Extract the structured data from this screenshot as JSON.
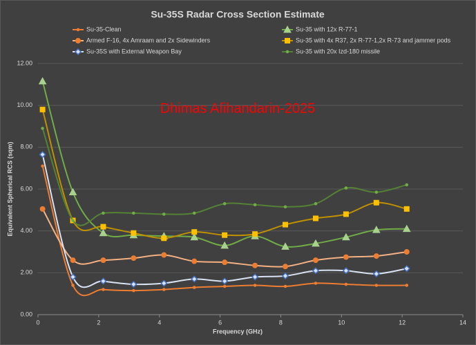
{
  "chart_data": {
    "type": "line",
    "title": "Su-35S Radar Cross Section Estimate",
    "x_label": "Frequency (GHz)",
    "y_label": "Equivalent Spherical RCS (sqm)",
    "annotation": "Dhimas Afihandarin-2025",
    "x": [
      0.15,
      1.15,
      2.15,
      3.15,
      4.15,
      5.15,
      6.15,
      7.15,
      8.15,
      9.15,
      10.15,
      11.15,
      12.15
    ],
    "xlim": [
      0,
      14
    ],
    "xticks": [
      0,
      2,
      4,
      6,
      8,
      10,
      12,
      14
    ],
    "ylim": [
      0,
      12
    ],
    "yticks": [
      {
        "value": 0,
        "label": "0.00"
      },
      {
        "value": 2,
        "label": "2.00"
      },
      {
        "value": 4,
        "label": "4.00"
      },
      {
        "value": 6,
        "label": "6.00"
      },
      {
        "value": 8,
        "label": "8.00"
      },
      {
        "value": 10,
        "label": "10.00"
      },
      {
        "value": 12,
        "label": "12.00"
      }
    ],
    "grid": true,
    "series": [
      {
        "name": "Su-35-Clean",
        "color": "#ed7d31",
        "marker": "dot",
        "values": [
          7.1,
          1.4,
          1.2,
          1.15,
          1.2,
          1.3,
          1.35,
          1.4,
          1.35,
          1.5,
          1.45,
          1.4,
          1.4
        ]
      },
      {
        "name": "Armed F-16, 4x Amraam and 2x Sidewinders",
        "color": "#f4b183",
        "marker": "circle",
        "marker_color": "#ed7d31",
        "values": [
          5.05,
          2.6,
          2.6,
          2.7,
          2.85,
          2.55,
          2.5,
          2.35,
          2.3,
          2.6,
          2.75,
          2.8,
          3.0
        ]
      },
      {
        "name": "Su-35S with External Weapon Bay",
        "color": "#dae3f3",
        "marker": "diamond",
        "marker_color": "#4472c4",
        "values": [
          7.65,
          1.8,
          1.6,
          1.45,
          1.5,
          1.7,
          1.6,
          1.8,
          1.85,
          2.1,
          2.1,
          1.95,
          2.2
        ]
      },
      {
        "name": "Su-35 with 12x R-77-1",
        "color": "#70ad47",
        "marker": "triangle",
        "marker_color": "#a9d18e",
        "values": [
          11.15,
          5.85,
          3.9,
          3.8,
          3.75,
          3.7,
          3.3,
          3.75,
          3.25,
          3.4,
          3.7,
          4.05,
          4.1
        ]
      },
      {
        "name": "Su-35 with 4x R37, 2x R-77-1,2x R-73 and jammer pods",
        "color": "#bf9000",
        "marker": "square",
        "marker_color": "#ffc000",
        "values": [
          9.8,
          4.5,
          4.2,
          3.9,
          3.65,
          3.95,
          3.8,
          3.85,
          4.3,
          4.6,
          4.8,
          5.35,
          5.05
        ]
      },
      {
        "name": "Su-35 with 20x Izd-180 missile",
        "color": "#548235",
        "marker": "dot",
        "marker_color": "#70ad47",
        "values": [
          8.9,
          4.5,
          4.85,
          4.85,
          4.8,
          4.85,
          5.3,
          5.25,
          5.15,
          5.3,
          6.05,
          5.85,
          6.2
        ]
      }
    ]
  }
}
